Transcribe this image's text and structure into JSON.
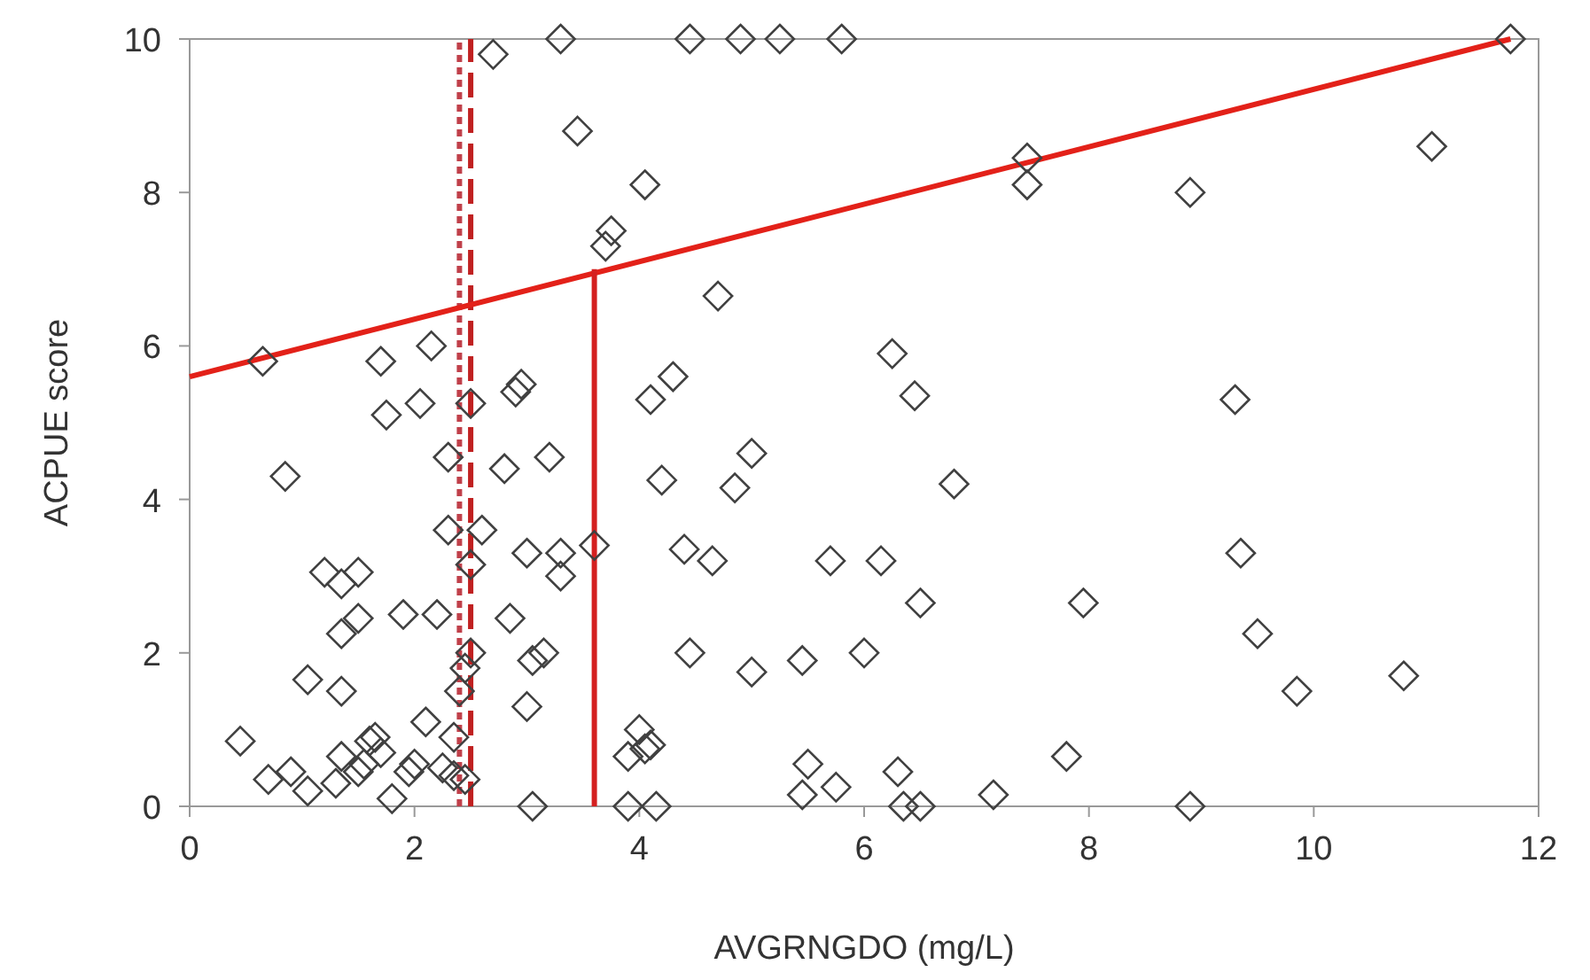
{
  "chart_data": {
    "type": "scatter",
    "xlabel": "AVGRNGDO (mg/L)",
    "ylabel": "ACPUE score",
    "xlim": [
      0,
      12
    ],
    "ylim": [
      0,
      10
    ],
    "xticks": [
      0,
      2,
      4,
      6,
      8,
      10,
      12
    ],
    "yticks": [
      0,
      2,
      4,
      6,
      8,
      10
    ],
    "grid": false,
    "series": [
      {
        "marker": "diamond",
        "color": "#404040",
        "x": [
          0.65,
          0.45,
          0.85,
          0.7,
          0.9,
          1.05,
          1.05,
          1.2,
          1.35,
          1.5,
          1.35,
          1.5,
          1.35,
          1.3,
          1.35,
          1.5,
          1.55,
          1.6,
          1.65,
          1.7,
          1.7,
          1.75,
          1.8,
          1.9,
          1.95,
          2.0,
          2.05,
          2.1,
          2.15,
          2.2,
          2.25,
          2.3,
          2.3,
          2.35,
          2.35,
          2.4,
          2.45,
          2.45,
          2.5,
          2.5,
          2.6,
          2.5,
          2.7,
          2.8,
          2.85,
          2.9,
          2.95,
          3.0,
          3.0,
          3.05,
          3.05,
          3.15,
          3.2,
          3.3,
          3.3,
          3.3,
          3.45,
          3.6,
          3.7,
          3.75,
          3.9,
          3.9,
          4.0,
          4.05,
          4.15,
          4.1,
          4.05,
          4.1,
          4.2,
          4.3,
          4.4,
          4.45,
          4.45,
          4.65,
          4.7,
          4.85,
          4.9,
          5.0,
          5.0,
          5.25,
          5.45,
          5.5,
          5.45,
          5.7,
          5.75,
          5.8,
          6.0,
          6.15,
          6.25,
          6.3,
          6.35,
          6.45,
          6.5,
          6.5,
          6.8,
          7.15,
          7.45,
          7.45,
          7.8,
          7.95,
          8.9,
          8.9,
          9.3,
          9.35,
          9.5,
          9.85,
          10.8,
          11.05,
          11.75
        ],
        "values": [
          5.8,
          0.85,
          4.3,
          0.35,
          0.45,
          0.2,
          1.65,
          3.05,
          2.9,
          3.05,
          2.25,
          2.45,
          1.5,
          0.3,
          0.65,
          0.45,
          0.55,
          0.85,
          0.9,
          0.7,
          5.8,
          5.1,
          0.1,
          2.5,
          0.45,
          0.55,
          5.25,
          1.1,
          6.0,
          2.5,
          0.5,
          4.55,
          3.6,
          0.4,
          0.9,
          1.5,
          1.8,
          0.35,
          2.0,
          3.15,
          3.6,
          5.25,
          9.8,
          4.4,
          2.45,
          5.4,
          5.5,
          3.3,
          1.3,
          0,
          1.9,
          2.0,
          4.55,
          3.3,
          3.0,
          10,
          8.8,
          3.4,
          7.3,
          7.5,
          0,
          0.65,
          1.0,
          0.75,
          0,
          0.8,
          8.1,
          5.3,
          4.25,
          5.6,
          3.35,
          2.0,
          10,
          3.2,
          6.65,
          4.15,
          10,
          4.6,
          1.75,
          10,
          1.9,
          0.55,
          0.15,
          3.2,
          0.25,
          10,
          2.0,
          3.2,
          5.9,
          0.45,
          0,
          5.35,
          2.65,
          0,
          4.2,
          0.15,
          8.45,
          8.1,
          0.65,
          2.65,
          8.0,
          0,
          5.3,
          3.3,
          2.25,
          1.5,
          1.7,
          8.6,
          10
        ]
      },
      {
        "type": "line",
        "color": "#e32119",
        "x": [
          0,
          11.75
        ],
        "values": [
          5.6,
          10
        ]
      },
      {
        "type": "line",
        "color": "#d42020",
        "x": [
          3.6,
          3.6
        ],
        "values": [
          0,
          7
        ]
      }
    ],
    "ref_lines": [
      {
        "axis": "x",
        "value": 2.4,
        "color": "#c0404a",
        "line_style": "dotted"
      },
      {
        "axis": "x",
        "value": 2.5,
        "color": "#c02020",
        "line_style": "dashed"
      }
    ]
  }
}
